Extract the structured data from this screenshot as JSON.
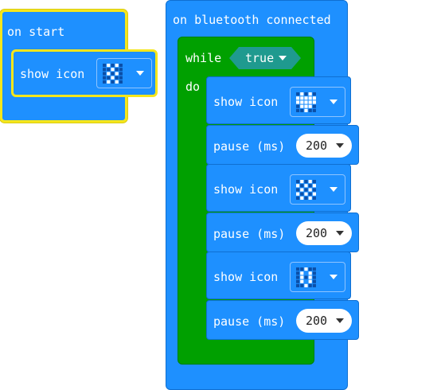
{
  "on_start": {
    "label": "on start",
    "show_icon_label": "show icon",
    "icon_name": "small-diamond-icon"
  },
  "bt_connected": {
    "label": "on bluetooth connected",
    "while_label": "while",
    "condition": "true",
    "do_label": "do",
    "steps": [
      {
        "kind": "show",
        "label": "show icon",
        "icon_name": "heart-icon"
      },
      {
        "kind": "pause",
        "label": "pause (ms)",
        "value": "200"
      },
      {
        "kind": "show",
        "label": "show icon",
        "icon_name": "diamond-icon"
      },
      {
        "kind": "pause",
        "label": "pause (ms)",
        "value": "200"
      },
      {
        "kind": "show",
        "label": "show icon",
        "icon_name": "small-diamond-icon"
      },
      {
        "kind": "pause",
        "label": "pause (ms)",
        "value": "200"
      }
    ]
  },
  "colors": {
    "event_blue": "#1e90ff",
    "loop_green": "#00a000",
    "bool_teal": "#1f9a8f",
    "selection_yellow": "#f5e61b"
  }
}
